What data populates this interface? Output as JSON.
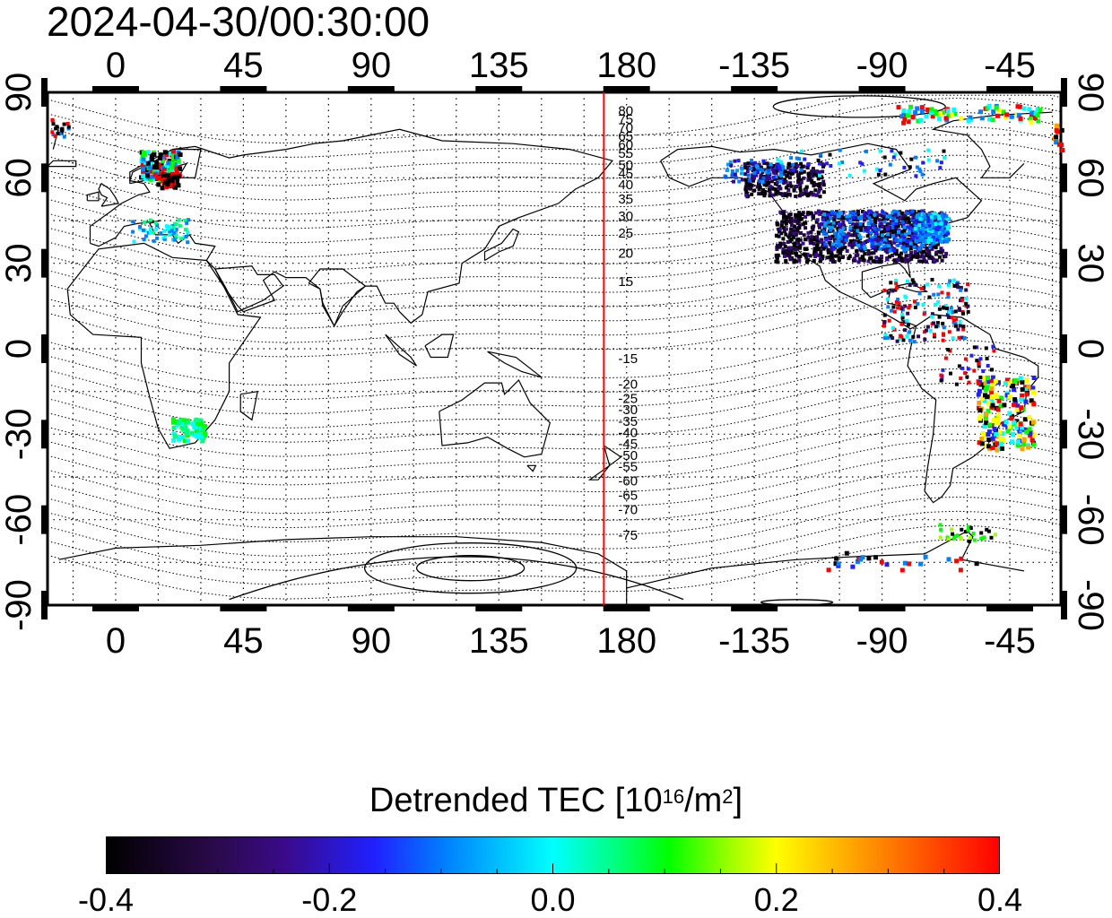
{
  "title": "2024-04-30/00:30:00",
  "map": {
    "x_tick_labels": [
      "0",
      "45",
      "90",
      "135",
      "180",
      "-135",
      "-90",
      "-45"
    ],
    "x_tick_lons": [
      0,
      45,
      90,
      135,
      180,
      225,
      270,
      315
    ],
    "y_tick_labels": [
      "90",
      "60",
      "30",
      "0",
      "-30",
      "-60",
      "-90"
    ],
    "y_tick_lats": [
      90,
      60,
      30,
      0,
      -30,
      -60,
      -90
    ],
    "lon_range": [
      -24,
      333
    ],
    "lat_range": [
      -90,
      90
    ],
    "terminator_lon": 172,
    "terminator_color": "#ff0000",
    "contour_labels_north": [
      "80",
      "75",
      "70",
      "65",
      "60",
      "55",
      "50",
      "45",
      "40",
      "35",
      "30",
      "25",
      "20",
      "15"
    ],
    "contour_labels_south": [
      "-15",
      "-20",
      "-25",
      "-30",
      "-35",
      "-40",
      "-45",
      "-50",
      "-55",
      "-60",
      "-65",
      "-70",
      "-75"
    ]
  },
  "colorbar": {
    "title_main": "Detrended TEC  [10",
    "title_exp": "16",
    "title_unit": "/m",
    "title_exp2": "2",
    "title_end": "]",
    "ticks": [
      "-0.4",
      "-0.2",
      "0.0",
      "0.2",
      "0.4"
    ],
    "range": [
      -0.4,
      0.4
    ]
  }
}
